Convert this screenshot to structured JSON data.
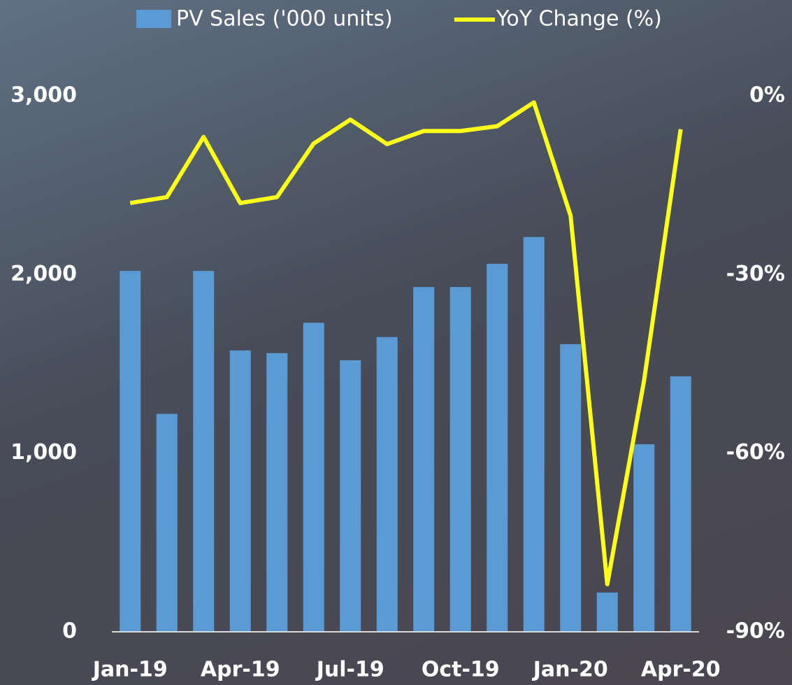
{
  "chart_data": {
    "type": "bar-line",
    "categories": [
      "Jan-19",
      null,
      null,
      "Apr-19",
      null,
      null,
      "Jul-19",
      null,
      null,
      "Oct-19",
      null,
      null,
      "Jan-20",
      null,
      null,
      "Apr-20"
    ],
    "series": [
      {
        "name": "PV Sales ('000 units)",
        "color": "#5b9bd5",
        "type": "bar",
        "values": [
          2020,
          1220,
          2020,
          1575,
          1560,
          1730,
          1520,
          1650,
          1930,
          1930,
          2060,
          2210,
          1610,
          220,
          1050,
          1430
        ]
      },
      {
        "name": "YoY Change (%)",
        "color": "#ffff1a",
        "type": "line",
        "axis": "y2",
        "values": [
          -18,
          -17,
          -6.9,
          -18,
          -17,
          -8,
          -4,
          -8.1,
          -5.9,
          -5.9,
          -5.1,
          -1.1,
          -20.1,
          -82,
          -47.9,
          -5.6
        ]
      }
    ],
    "ylim": [
      0,
      3000
    ],
    "yticks": [
      0,
      {
        "value": 1000,
        "label": "1,000"
      },
      {
        "value": 2000,
        "label": "2,000"
      },
      {
        "value": 3000,
        "label": "3,000"
      }
    ],
    "y2lim": [
      -90,
      0
    ],
    "y2ticks": [
      {
        "value": -90,
        "label": "-90%"
      },
      {
        "value": -60,
        "label": "-60%"
      },
      {
        "value": -30,
        "label": "-30%"
      },
      {
        "value": 0,
        "label": "0%"
      }
    ],
    "legend": "top"
  }
}
